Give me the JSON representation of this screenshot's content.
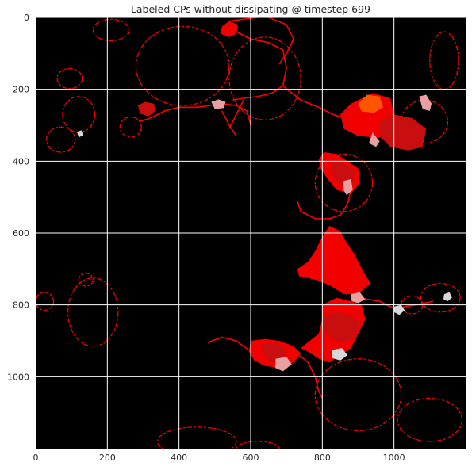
{
  "chart_data": {
    "type": "heatmap",
    "title": "Labeled CPs without dissipating @ timestep 699",
    "xlabel": "",
    "ylabel": "",
    "xlim": [
      0,
      1200
    ],
    "ylim": [
      1200,
      0
    ],
    "x_ticks": [
      0,
      200,
      400,
      600,
      800,
      1000
    ],
    "y_ticks": [
      0,
      200,
      400,
      600,
      800,
      1000
    ],
    "x_tick_labels": [
      "0",
      "200",
      "400",
      "600",
      "800",
      "1000"
    ],
    "y_tick_labels": [
      "0",
      "200",
      "400",
      "600",
      "800",
      "1000"
    ],
    "grid": true,
    "grid_color": "#ffffff",
    "background_color": "#000000",
    "colors": {
      "boundary": "#ff0000",
      "region_red": "#f20000",
      "region_dark_red": "#c80e0e",
      "region_orange": "#ff5500",
      "region_pink": "#e8a0a0",
      "region_light": "#d8d8d8"
    },
    "ring_outlines": [
      {
        "cx": 70,
        "cy": 340,
        "rx": 40,
        "ry": 35
      },
      {
        "cx": 95,
        "cy": 170,
        "rx": 35,
        "ry": 28
      },
      {
        "cx": 120,
        "cy": 270,
        "rx": 45,
        "ry": 50
      },
      {
        "cx": 265,
        "cy": 305,
        "rx": 30,
        "ry": 28
      },
      {
        "cx": 210,
        "cy": 35,
        "rx": 50,
        "ry": 30
      },
      {
        "cx": 410,
        "cy": 135,
        "rx": 130,
        "ry": 110
      },
      {
        "cx": 640,
        "cy": 170,
        "rx": 100,
        "ry": 115
      },
      {
        "cx": 860,
        "cy": 460,
        "rx": 80,
        "ry": 80
      },
      {
        "cx": 1085,
        "cy": 290,
        "rx": 65,
        "ry": 60
      },
      {
        "cx": 1140,
        "cy": 120,
        "rx": 40,
        "ry": 80
      },
      {
        "cx": 140,
        "cy": 730,
        "rx": 20,
        "ry": 18
      },
      {
        "cx": 160,
        "cy": 820,
        "rx": 70,
        "ry": 95
      },
      {
        "cx": 25,
        "cy": 790,
        "rx": 25,
        "ry": 25
      },
      {
        "cx": 1130,
        "cy": 780,
        "rx": 55,
        "ry": 40
      },
      {
        "cx": 1050,
        "cy": 800,
        "rx": 30,
        "ry": 25
      },
      {
        "cx": 900,
        "cy": 1050,
        "rx": 120,
        "ry": 100
      },
      {
        "cx": 450,
        "cy": 1180,
        "rx": 110,
        "ry": 40
      },
      {
        "cx": 620,
        "cy": 1200,
        "rx": 60,
        "ry": 20
      },
      {
        "cx": 1100,
        "cy": 1120,
        "rx": 90,
        "ry": 60
      }
    ],
    "regions": [
      {
        "color": "#f20000",
        "points": [
          [
            520,
            25
          ],
          [
            540,
            10
          ],
          [
            565,
            20
          ],
          [
            560,
            45
          ],
          [
            540,
            55
          ],
          [
            515,
            45
          ]
        ]
      },
      {
        "color": "#f20000",
        "points": [
          [
            850,
            270
          ],
          [
            880,
            240
          ],
          [
            940,
            210
          ],
          [
            990,
            225
          ],
          [
            1000,
            270
          ],
          [
            985,
            310
          ],
          [
            960,
            335
          ],
          [
            900,
            330
          ],
          [
            860,
            310
          ]
        ]
      },
      {
        "color": "#c80e0e",
        "points": [
          [
            960,
            290
          ],
          [
            1000,
            270
          ],
          [
            1050,
            280
          ],
          [
            1090,
            310
          ],
          [
            1080,
            360
          ],
          [
            1040,
            370
          ],
          [
            990,
            360
          ],
          [
            960,
            330
          ]
        ]
      },
      {
        "color": "#ff5500",
        "points": [
          [
            900,
            240
          ],
          [
            925,
            215
          ],
          [
            960,
            220
          ],
          [
            970,
            250
          ],
          [
            945,
            265
          ],
          [
            910,
            262
          ]
        ]
      },
      {
        "color": "#e8a0a0",
        "points": [
          [
            940,
            320
          ],
          [
            960,
            345
          ],
          [
            950,
            360
          ],
          [
            930,
            350
          ]
        ]
      },
      {
        "color": "#f20000",
        "points": [
          [
            790,
            395
          ],
          [
            805,
            375
          ],
          [
            840,
            380
          ],
          [
            870,
            400
          ],
          [
            900,
            420
          ],
          [
            905,
            460
          ],
          [
            880,
            490
          ],
          [
            840,
            480
          ],
          [
            815,
            450
          ],
          [
            795,
            420
          ]
        ]
      },
      {
        "color": "#c80e0e",
        "points": [
          [
            825,
            400
          ],
          [
            860,
            405
          ],
          [
            890,
            430
          ],
          [
            885,
            465
          ],
          [
            855,
            470
          ],
          [
            830,
            440
          ]
        ]
      },
      {
        "color": "#e8a0a0",
        "points": [
          [
            860,
            455
          ],
          [
            880,
            450
          ],
          [
            885,
            480
          ],
          [
            868,
            495
          ],
          [
            858,
            478
          ]
        ]
      },
      {
        "color": "#f20000",
        "points": [
          [
            820,
            580
          ],
          [
            850,
            595
          ],
          [
            870,
            630
          ],
          [
            890,
            660
          ],
          [
            910,
            700
          ],
          [
            935,
            740
          ],
          [
            900,
            770
          ],
          [
            860,
            770
          ],
          [
            820,
            745
          ],
          [
            780,
            730
          ],
          [
            735,
            720
          ],
          [
            730,
            700
          ],
          [
            760,
            680
          ],
          [
            780,
            650
          ],
          [
            800,
            610
          ]
        ]
      },
      {
        "color": "#f20000",
        "points": [
          [
            800,
            800
          ],
          [
            840,
            780
          ],
          [
            880,
            790
          ],
          [
            910,
            800
          ],
          [
            920,
            840
          ],
          [
            900,
            880
          ],
          [
            880,
            920
          ],
          [
            850,
            940
          ],
          [
            820,
            960
          ],
          [
            790,
            950
          ],
          [
            760,
            930
          ],
          [
            740,
            920
          ],
          [
            790,
            880
          ],
          [
            800,
            840
          ]
        ]
      },
      {
        "color": "#c80e0e",
        "points": [
          [
            800,
            830
          ],
          [
            840,
            820
          ],
          [
            880,
            830
          ],
          [
            905,
            850
          ],
          [
            890,
            890
          ],
          [
            860,
            905
          ],
          [
            830,
            895
          ],
          [
            805,
            870
          ]
        ]
      },
      {
        "color": "#d8d8d8",
        "points": [
          [
            828,
            925
          ],
          [
            855,
            920
          ],
          [
            870,
            940
          ],
          [
            850,
            955
          ],
          [
            828,
            948
          ]
        ]
      },
      {
        "color": "#f20000",
        "points": [
          [
            600,
            900
          ],
          [
            640,
            895
          ],
          [
            680,
            900
          ],
          [
            720,
            915
          ],
          [
            740,
            935
          ],
          [
            720,
            960
          ],
          [
            680,
            975
          ],
          [
            640,
            970
          ],
          [
            610,
            955
          ],
          [
            595,
            930
          ]
        ]
      },
      {
        "color": "#c80e0e",
        "points": [
          [
            630,
            910
          ],
          [
            670,
            905
          ],
          [
            700,
            925
          ],
          [
            690,
            955
          ],
          [
            660,
            960
          ],
          [
            635,
            940
          ]
        ]
      },
      {
        "color": "#e8a0a0",
        "points": [
          [
            670,
            950
          ],
          [
            700,
            945
          ],
          [
            715,
            965
          ],
          [
            690,
            985
          ],
          [
            668,
            975
          ]
        ]
      },
      {
        "color": "#c80e0e",
        "points": [
          [
            285,
            245
          ],
          [
            305,
            235
          ],
          [
            330,
            240
          ],
          [
            335,
            260
          ],
          [
            315,
            275
          ],
          [
            292,
            268
          ]
        ]
      },
      {
        "color": "#e8a0a0",
        "points": [
          [
            490,
            235
          ],
          [
            510,
            228
          ],
          [
            530,
            235
          ],
          [
            525,
            252
          ],
          [
            500,
            255
          ]
        ]
      },
      {
        "color": "#e8a0a0",
        "points": [
          [
            1070,
            220
          ],
          [
            1090,
            215
          ],
          [
            1105,
            240
          ],
          [
            1100,
            260
          ],
          [
            1080,
            255
          ]
        ]
      },
      {
        "color": "#d8d8d8",
        "points": [
          [
            1000,
            805
          ],
          [
            1020,
            800
          ],
          [
            1030,
            815
          ],
          [
            1015,
            828
          ],
          [
            1000,
            820
          ]
        ]
      },
      {
        "color": "#d8d8d8",
        "points": [
          [
            1140,
            770
          ],
          [
            1155,
            765
          ],
          [
            1162,
            780
          ],
          [
            1150,
            790
          ],
          [
            1138,
            784
          ]
        ]
      },
      {
        "color": "#d8d8d8",
        "points": [
          [
            115,
            318
          ],
          [
            128,
            314
          ],
          [
            132,
            328
          ],
          [
            120,
            334
          ]
        ]
      },
      {
        "color": "#e8a0a0",
        "points": [
          [
            880,
            770
          ],
          [
            905,
            765
          ],
          [
            920,
            785
          ],
          [
            900,
            795
          ],
          [
            882,
            790
          ]
        ]
      }
    ],
    "line_paths": [
      [
        [
          560,
          40
        ],
        [
          600,
          60
        ],
        [
          650,
          70
        ],
        [
          690,
          90
        ],
        [
          700,
          140
        ],
        [
          690,
          190
        ],
        [
          660,
          210
        ],
        [
          620,
          220
        ],
        [
          580,
          225
        ],
        [
          550,
          230
        ]
      ],
      [
        [
          540,
          10
        ],
        [
          580,
          5
        ],
        [
          620,
          0
        ]
      ],
      [
        [
          650,
          0
        ],
        [
          700,
          20
        ],
        [
          720,
          60
        ],
        [
          700,
          100
        ],
        [
          680,
          130
        ]
      ],
      [
        [
          690,
          190
        ],
        [
          740,
          230
        ],
        [
          790,
          250
        ],
        [
          830,
          270
        ],
        [
          860,
          280
        ]
      ],
      [
        [
          290,
          290
        ],
        [
          320,
          280
        ],
        [
          360,
          260
        ],
        [
          400,
          250
        ],
        [
          450,
          250
        ],
        [
          520,
          240
        ],
        [
          560,
          245
        ],
        [
          590,
          260
        ],
        [
          600,
          300
        ]
      ],
      [
        [
          520,
          260
        ],
        [
          540,
          300
        ],
        [
          560,
          330
        ]
      ],
      [
        [
          880,
          480
        ],
        [
          870,
          520
        ],
        [
          850,
          550
        ],
        [
          820,
          560
        ],
        [
          780,
          560
        ],
        [
          740,
          540
        ],
        [
          730,
          510
        ]
      ],
      [
        [
          580,
          230
        ],
        [
          560,
          270
        ],
        [
          540,
          310
        ]
      ],
      [
        [
          900,
          780
        ],
        [
          960,
          790
        ],
        [
          1000,
          810
        ],
        [
          1060,
          800
        ],
        [
          1110,
          790
        ]
      ],
      [
        [
          730,
          935
        ],
        [
          760,
          960
        ],
        [
          780,
          1000
        ],
        [
          790,
          1040
        ],
        [
          800,
          1060
        ]
      ],
      [
        [
          600,
          930
        ],
        [
          560,
          900
        ],
        [
          520,
          890
        ],
        [
          480,
          905
        ]
      ]
    ]
  }
}
